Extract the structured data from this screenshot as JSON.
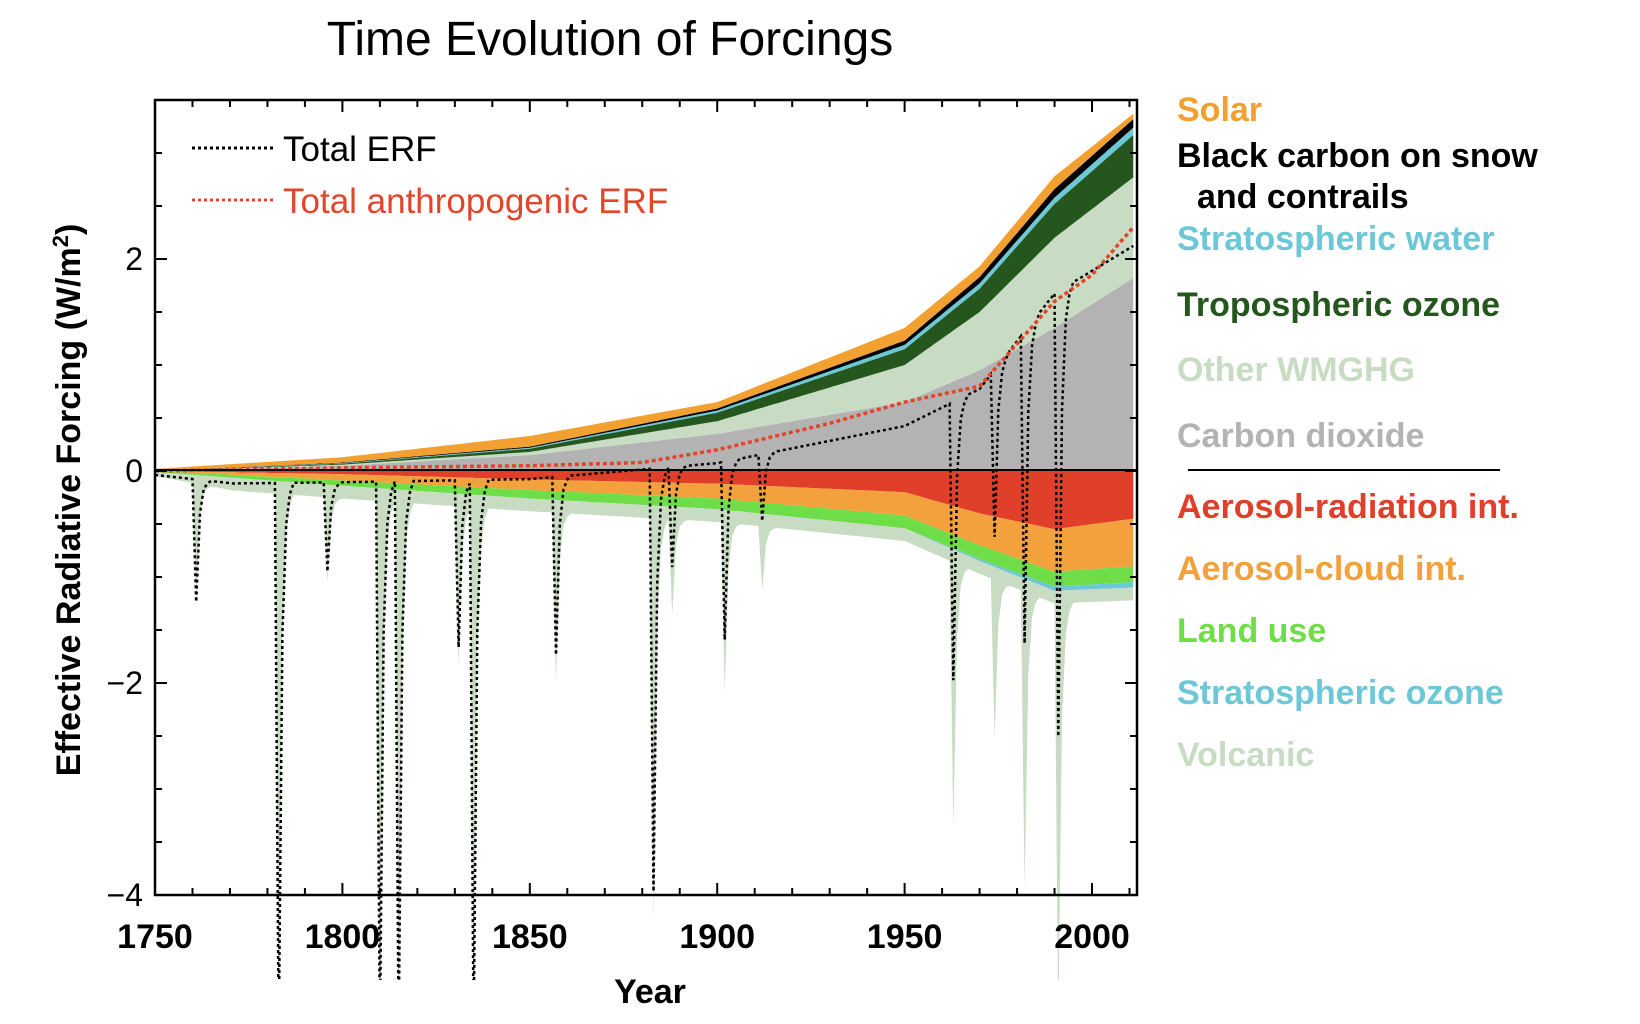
{
  "chart_data": {
    "type": "area",
    "title": "Time Evolution of Forcings",
    "xlabel": "Year",
    "ylabel": "Effective Radiative Forcing (W/m",
    "ylabel_sup": "2",
    "ylabel_close": ")",
    "xlim": [
      1750,
      2012
    ],
    "ylim": [
      -4,
      3.5
    ],
    "x_ticks": [
      1750,
      1800,
      1850,
      1900,
      1950,
      2000
    ],
    "x_tick_labels": [
      "1750",
      "1800",
      "1850",
      "1900",
      "1950",
      "2000"
    ],
    "y_ticks": [
      -4,
      -2,
      0,
      2
    ],
    "y_tick_labels": [
      "−4",
      "−2",
      "0",
      "2"
    ],
    "line_legend": [
      {
        "label": "Total ERF",
        "color": "#000000"
      },
      {
        "label": "Total anthropogenic ERF",
        "color": "#e2452a"
      }
    ],
    "positive_components": [
      {
        "name": "Carbon dioxide",
        "color": "#b3b3b3",
        "x": [
          1750,
          1800,
          1850,
          1900,
          1950,
          1970,
          1990,
          2011
        ],
        "values": [
          0,
          0.05,
          0.15,
          0.35,
          0.65,
          0.95,
          1.35,
          1.82
        ]
      },
      {
        "name": "Other WMGHG",
        "color": "#c8dcc3",
        "x": [
          1750,
          1800,
          1850,
          1900,
          1950,
          1970,
          1990,
          2011
        ],
        "values": [
          0,
          0.01,
          0.03,
          0.12,
          0.35,
          0.55,
          0.85,
          0.95
        ]
      },
      {
        "name": "Tropospheric ozone",
        "color": "#24561e",
        "x": [
          1750,
          1800,
          1850,
          1900,
          1950,
          1970,
          1990,
          2011
        ],
        "values": [
          0,
          0.01,
          0.03,
          0.08,
          0.15,
          0.22,
          0.32,
          0.4
        ]
      },
      {
        "name": "Stratospheric water",
        "color": "#6cc7d6",
        "x": [
          1750,
          1800,
          1850,
          1900,
          1950,
          1970,
          1990,
          2011
        ],
        "values": [
          0,
          0.005,
          0.01,
          0.02,
          0.04,
          0.05,
          0.06,
          0.07
        ]
      },
      {
        "name": "Black carbon on snow and contrails",
        "color": "#000000",
        "x": [
          1750,
          1800,
          1850,
          1900,
          1950,
          1970,
          1990,
          2011
        ],
        "values": [
          0,
          0.005,
          0.01,
          0.02,
          0.04,
          0.06,
          0.08,
          0.08
        ]
      },
      {
        "name": "Solar",
        "color": "#f2a030",
        "x": [
          1750,
          1800,
          1850,
          1900,
          1950,
          1970,
          1990,
          2011
        ],
        "values": [
          0.02,
          0.05,
          0.1,
          0.06,
          0.12,
          0.1,
          0.12,
          0.05
        ]
      }
    ],
    "negative_components": [
      {
        "name": "Aerosol-radiation int.",
        "color": "#e0402a",
        "x": [
          1750,
          1800,
          1850,
          1900,
          1950,
          1970,
          1990,
          2011
        ],
        "values": [
          0,
          -0.03,
          -0.08,
          -0.12,
          -0.2,
          -0.4,
          -0.55,
          -0.45
        ]
      },
      {
        "name": "Aerosol-cloud int.",
        "color": "#f2a13c",
        "x": [
          1750,
          1800,
          1850,
          1900,
          1950,
          1970,
          1990,
          2011
        ],
        "values": [
          0,
          -0.06,
          -0.1,
          -0.14,
          -0.22,
          -0.3,
          -0.4,
          -0.45
        ]
      },
      {
        "name": "Land use",
        "color": "#6fdd48",
        "x": [
          1750,
          1800,
          1850,
          1900,
          1950,
          1970,
          1990,
          2011
        ],
        "values": [
          -0.01,
          -0.05,
          -0.08,
          -0.1,
          -0.12,
          -0.13,
          -0.14,
          -0.15
        ]
      },
      {
        "name": "Stratospheric ozone",
        "color": "#6cc7d6",
        "x": [
          1750,
          1800,
          1850,
          1900,
          1950,
          1970,
          1990,
          2011
        ],
        "values": [
          0,
          0,
          0,
          0,
          0,
          -0.02,
          -0.04,
          -0.05
        ]
      }
    ],
    "volcanic": {
      "name": "Volcanic",
      "color": "#c8dcc3",
      "background": -0.12,
      "eruptions": [
        {
          "year": 1761,
          "peak": -1.1
        },
        {
          "year": 1783,
          "peak": -5.0
        },
        {
          "year": 1796,
          "peak": -0.8
        },
        {
          "year": 1810,
          "peak": -5.0
        },
        {
          "year": 1815,
          "peak": -5.0
        },
        {
          "year": 1831,
          "peak": -1.5
        },
        {
          "year": 1835,
          "peak": -5.0
        },
        {
          "year": 1857,
          "peak": -1.6
        },
        {
          "year": 1883,
          "peak": -3.8
        },
        {
          "year": 1888,
          "peak": -0.9
        },
        {
          "year": 1902,
          "peak": -1.6
        },
        {
          "year": 1912,
          "peak": -0.6
        },
        {
          "year": 1963,
          "peak": -2.5
        },
        {
          "year": 1974,
          "peak": -1.5
        },
        {
          "year": 1982,
          "peak": -2.8
        },
        {
          "year": 1991,
          "peak": -4.0
        }
      ]
    },
    "total_erf_smooth": {
      "x": [
        1750,
        1800,
        1850,
        1900,
        1950,
        1970,
        1990,
        2011
      ],
      "values": [
        0,
        0.02,
        0.05,
        0.2,
        0.55,
        0.9,
        1.8,
        2.25
      ]
    },
    "total_anthropogenic_erf": {
      "x": [
        1750,
        1800,
        1850,
        1880,
        1900,
        1930,
        1950,
        1970,
        1980,
        1990,
        2000,
        2011
      ],
      "values": [
        0,
        0.03,
        0.05,
        0.08,
        0.2,
        0.45,
        0.65,
        0.8,
        1.2,
        1.6,
        1.85,
        2.3
      ]
    },
    "category_legend": [
      {
        "lines": [
          "Solar"
        ],
        "color": "#f2a030"
      },
      {
        "lines": [
          "Black carbon on snow",
          "and contrails"
        ],
        "color": "#000000"
      },
      {
        "lines": [
          "Stratospheric water"
        ],
        "color": "#6cc7d6"
      },
      {
        "lines": [
          "Tropospheric ozone"
        ],
        "color": "#24561e"
      },
      {
        "lines": [
          "Other WMGHG"
        ],
        "color": "#c8dcc3"
      },
      {
        "lines": [
          "Carbon dioxide"
        ],
        "color": "#b3b3b3"
      },
      {
        "lines": [
          "Aerosol-radiation int."
        ],
        "color": "#e0402a"
      },
      {
        "lines": [
          "Aerosol-cloud int."
        ],
        "color": "#f2a13c"
      },
      {
        "lines": [
          "Land use"
        ],
        "color": "#6fdd48"
      },
      {
        "lines": [
          "Stratospheric ozone"
        ],
        "color": "#6cc7d6"
      },
      {
        "lines": [
          "Volcanic"
        ],
        "color": "#c8dcc3"
      }
    ]
  }
}
